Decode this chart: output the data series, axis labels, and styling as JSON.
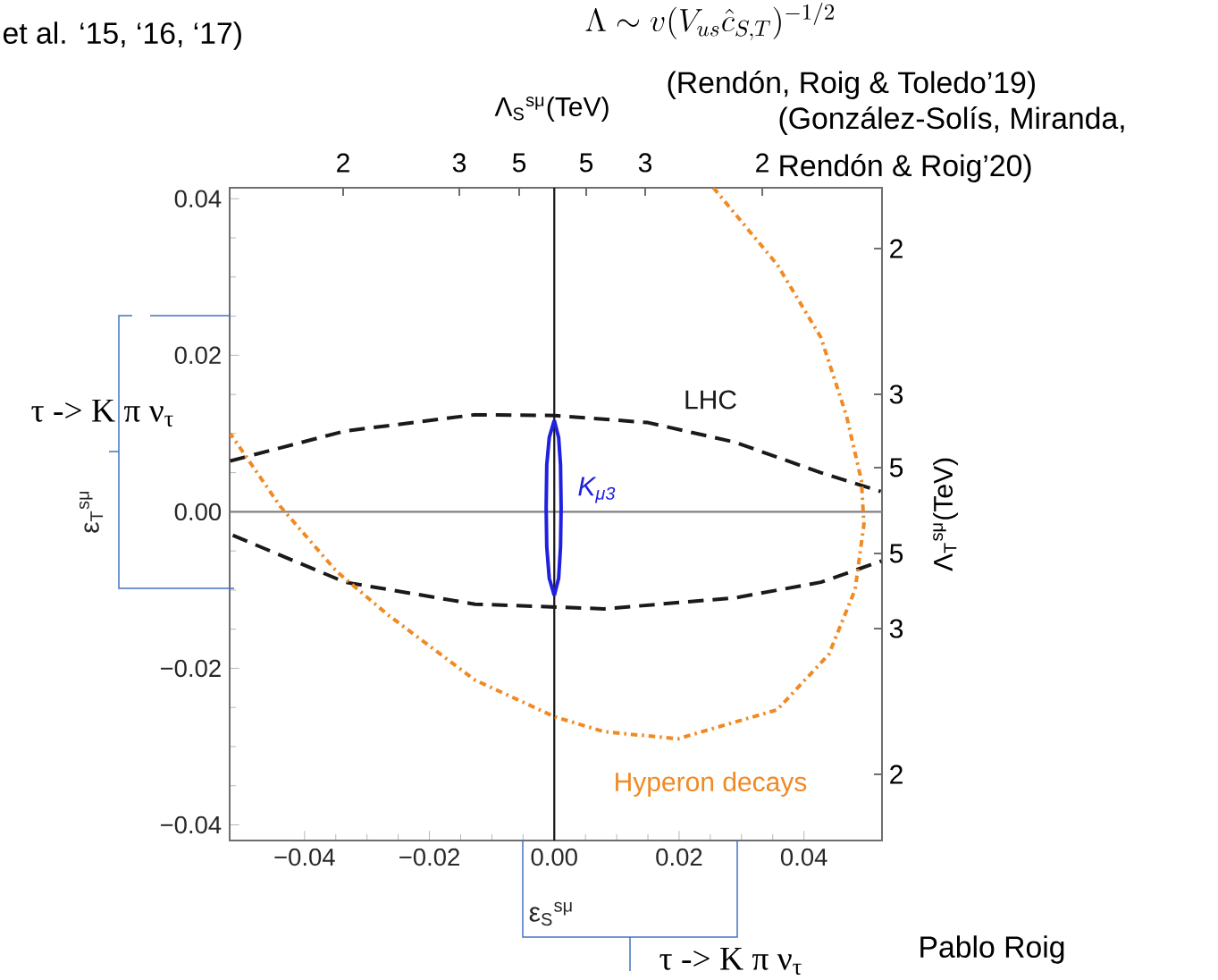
{
  "chart_data": {
    "type": "line",
    "title": "\\Lambda \\sim v(V_{us}\\hat{c}_{S,T})^{-1/2}",
    "xlabel": "ε$_{S}$$^{sμ}$",
    "ylabel": "ε$_{T}$$^{sμ}$",
    "xlim": [
      -0.052,
      0.0525
    ],
    "ylim": [
      -0.042,
      0.0414
    ],
    "xticks": [
      {
        "value": -0.04,
        "label": "−0.04"
      },
      {
        "value": -0.02,
        "label": "−0.02"
      },
      {
        "value": 0,
        "label": "0.00"
      },
      0.02,
      0.04
    ],
    "yticks": [
      {
        "value": -0.04,
        "label": "−0.04"
      },
      {
        "value": -0.02,
        "label": "−0.02"
      },
      {
        "value": 0,
        "label": "0.00"
      },
      0.02,
      0.04
    ],
    "ref_lines": [
      {
        "axis": "y",
        "value": 0,
        "color": "#808080"
      },
      {
        "axis": "x",
        "value": 0,
        "color": "#1a1a1a"
      }
    ],
    "series": [
      {
        "color": "#1a1a1a",
        "line_style": "dashed",
        "x": [
          -0.0519,
          -0.0336,
          -0.0127,
          0.0001,
          0.015,
          0.0289,
          0.0427,
          0.0523
        ],
        "values": [
          0.0065,
          0.0103,
          0.0124,
          0.0123,
          0.0114,
          0.0089,
          0.005,
          0.0026
        ]
      },
      {
        "color": "#1a1a1a",
        "line_style": "dashed",
        "x": [
          -0.0515,
          -0.0335,
          -0.0127,
          0.008,
          0.0289,
          0.0427,
          0.0524
        ],
        "values": [
          -0.003,
          -0.009,
          -0.0118,
          -0.0124,
          -0.011,
          -0.009,
          -0.0063
        ]
      },
      {
        "color": "#2020e0",
        "line_style": "solid",
        "x": [
          0.0,
          0.0007,
          0.001,
          0.0011,
          0.001,
          0.0007,
          0.0
        ],
        "values": [
          0.0117,
          0.0095,
          0.006,
          0.0005,
          -0.0045,
          -0.0085,
          -0.0107
        ]
      },
      {
        "color": "#2020e0",
        "line_style": "solid",
        "x": [
          0.0,
          -0.0008,
          -0.0012,
          -0.0013,
          -0.0012,
          -0.0008,
          0.0
        ],
        "values": [
          0.0117,
          0.0095,
          0.006,
          0.0005,
          -0.0045,
          -0.0085,
          -0.0107
        ]
      },
      {
        "color": "#f08a24",
        "line_style": "dotted",
        "x": [
          0.0255,
          0.0357,
          0.0427,
          0.0468,
          0.0492,
          0.0496,
          0.0482,
          0.044,
          0.0357,
          0.0198,
          0.008,
          0.0001,
          -0.0127,
          -0.0266,
          -0.0349,
          -0.0439,
          -0.0519
        ],
        "values": [
          0.0414,
          0.0316,
          0.0223,
          0.0123,
          0.004,
          -0.0016,
          -0.0099,
          -0.0182,
          -0.0253,
          -0.029,
          -0.0281,
          -0.0262,
          -0.0215,
          -0.0132,
          -0.0076,
          0.0007,
          0.01
        ]
      }
    ],
    "annotations": [
      "et al. ‘15, ‘16, ‘17)",
      "(Rendón, Roig & Toledo’19)",
      "(González-Solís, Miranda,",
      "Rendón & Roig’20)",
      "τ -> K π ν$_{τ}$",
      "τ -> K π ν$_{τ}$",
      "Pablo Roig",
      "LHC",
      "K$_{μ3}$",
      "Hyperon decays",
      "Λ$_{S}$$^{sμ}$(TeV)",
      "Λ$_{T}$$^{sμ}$(TeV)",
      "2",
      "3",
      "5",
      "5",
      "3",
      "2",
      "2",
      "3",
      "5",
      "5",
      "3",
      "2"
    ]
  }
}
